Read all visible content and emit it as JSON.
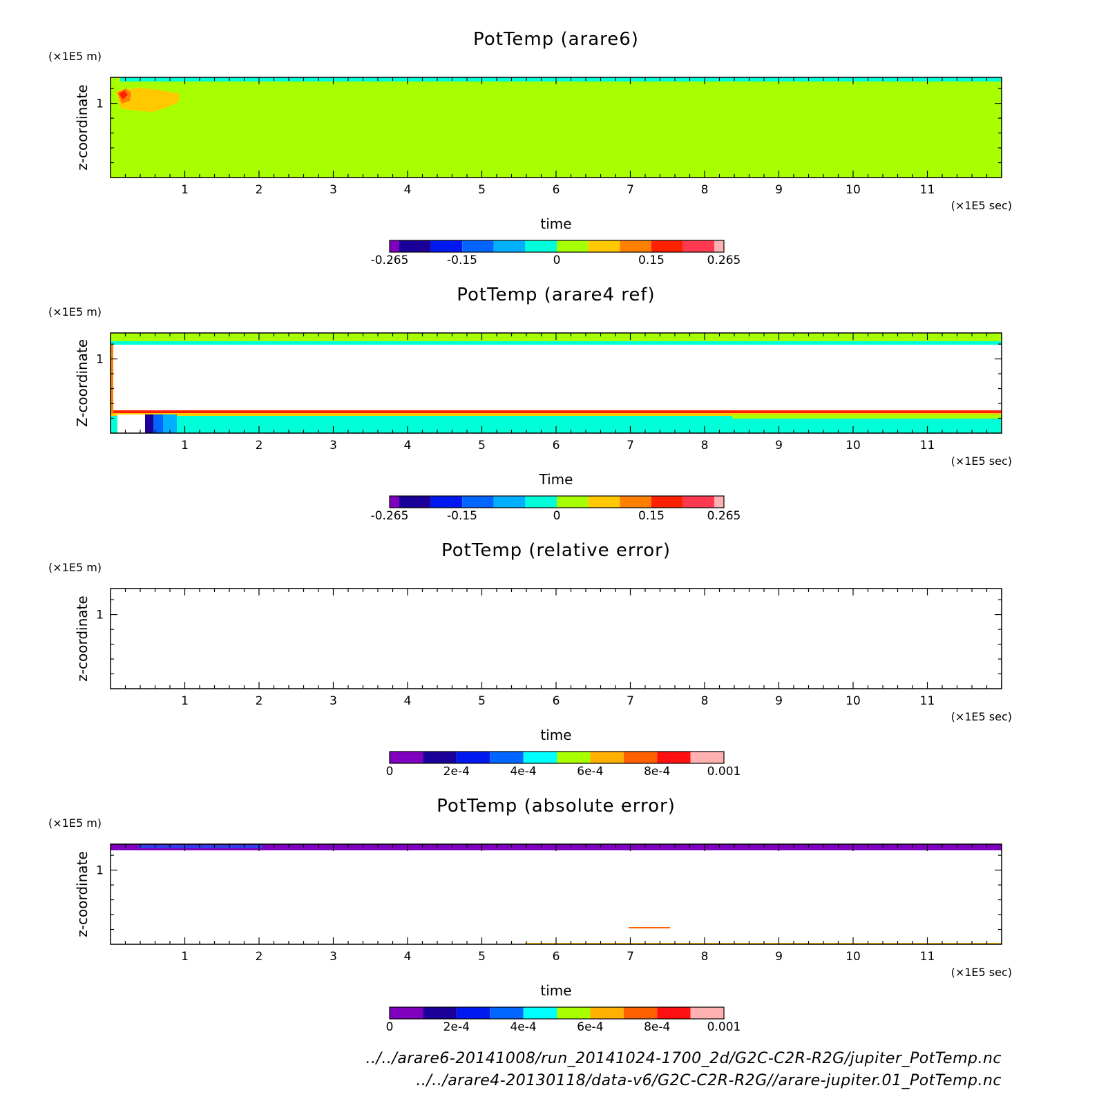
{
  "chart_data": [
    {
      "type": "heatmap",
      "title": "PotTemp (arare6)",
      "xlabel": "time",
      "ylabel": "z-coordinate",
      "x_unit": "(×1E5 sec)",
      "y_unit": "(×1E5 m)",
      "xlim": [
        0,
        12
      ],
      "ylim": [
        0,
        1.35
      ],
      "x_ticks": [
        "1",
        "2",
        "3",
        "4",
        "5",
        "6",
        "7",
        "8",
        "9",
        "10",
        "11"
      ],
      "y_ticks": [
        "1"
      ],
      "colorbar": {
        "colors": [
          "#7f00bf",
          "#1a0099",
          "#0019f0",
          "#0066ff",
          "#00b0ff",
          "#00ffd8",
          "#a8ff00",
          "#ffc800",
          "#ff8000",
          "#ff2000",
          "#ff3a50",
          "#ffb0b0"
        ],
        "tick_labels": [
          "-0.265",
          "-0.15",
          "0",
          "0.15",
          "0.265"
        ],
        "tick_values": [
          -0.265,
          -0.15,
          0,
          0.15,
          0.265
        ],
        "range": [
          -0.265,
          0.265
        ]
      },
      "dominant_value_color": "#a8ff00"
    },
    {
      "type": "heatmap",
      "title": "PotTemp (arare4 ref)",
      "xlabel": "Time",
      "ylabel": "Z-coordinate",
      "x_unit": "(×1E5 sec)",
      "y_unit": "(×1E5 m)",
      "xlim": [
        0,
        12
      ],
      "ylim": [
        0,
        1.35
      ],
      "x_ticks": [
        "1",
        "2",
        "3",
        "4",
        "5",
        "6",
        "7",
        "8",
        "9",
        "10",
        "11"
      ],
      "y_ticks": [
        "1"
      ],
      "colorbar": {
        "colors": [
          "#7f00bf",
          "#1a0099",
          "#0019f0",
          "#0066ff",
          "#00b0ff",
          "#00ffd8",
          "#a8ff00",
          "#ffc800",
          "#ff8000",
          "#ff2000",
          "#ff3a50",
          "#ffb0b0"
        ],
        "tick_labels": [
          "-0.265",
          "-0.15",
          "0",
          "0.15",
          "0.265"
        ],
        "tick_values": [
          -0.265,
          -0.15,
          0,
          0.15,
          0.265
        ],
        "range": [
          -0.265,
          0.265
        ]
      }
    },
    {
      "type": "heatmap",
      "title": "PotTemp (relative error)",
      "xlabel": "time",
      "ylabel": "z-coordinate",
      "x_unit": "(×1E5 sec)",
      "y_unit": "(×1E5 m)",
      "xlim": [
        0,
        12
      ],
      "ylim": [
        0,
        1.35
      ],
      "x_ticks": [
        "1",
        "2",
        "3",
        "4",
        "5",
        "6",
        "7",
        "8",
        "9",
        "10",
        "11"
      ],
      "y_ticks": [
        "1"
      ],
      "colorbar": {
        "colors": [
          "#7f00bf",
          "#1a0099",
          "#0019f0",
          "#0066ff",
          "#00ffff",
          "#a8ff00",
          "#ffb000",
          "#ff6000",
          "#ff1010",
          "#ffb0b0"
        ],
        "tick_labels": [
          "0",
          "2e-4",
          "4e-4",
          "6e-4",
          "8e-4",
          "0.001"
        ],
        "tick_values": [
          0,
          0.0002,
          0.0004,
          0.0006,
          0.0008,
          0.001
        ],
        "range": [
          0,
          0.001
        ]
      }
    },
    {
      "type": "heatmap",
      "title": "PotTemp (absolute error)",
      "xlabel": "time",
      "ylabel": "z-coordinate",
      "x_unit": "(×1E5 sec)",
      "y_unit": "(×1E5 m)",
      "xlim": [
        0,
        12
      ],
      "ylim": [
        0,
        1.35
      ],
      "x_ticks": [
        "1",
        "2",
        "3",
        "4",
        "5",
        "6",
        "7",
        "8",
        "9",
        "10",
        "11"
      ],
      "y_ticks": [
        "1"
      ],
      "colorbar": {
        "colors": [
          "#7f00bf",
          "#1a0099",
          "#0019f0",
          "#0066ff",
          "#00ffff",
          "#a8ff00",
          "#ffb000",
          "#ff6000",
          "#ff1010",
          "#ffb0b0"
        ],
        "tick_labels": [
          "0",
          "2e-4",
          "4e-4",
          "6e-4",
          "8e-4",
          "0.001"
        ],
        "tick_values": [
          0,
          0.0002,
          0.0004,
          0.0006,
          0.0008,
          0.001
        ],
        "range": [
          0,
          0.001
        ]
      }
    }
  ],
  "footer": {
    "line1": "../../arare6-20141008/run_20141024-1700_2d/G2C-C2R-R2G/jupiter_PotTemp.nc",
    "line2": "../../arare4-20130118/data-v6/G2C-C2R-R2G//arare-jupiter.01_PotTemp.nc"
  }
}
